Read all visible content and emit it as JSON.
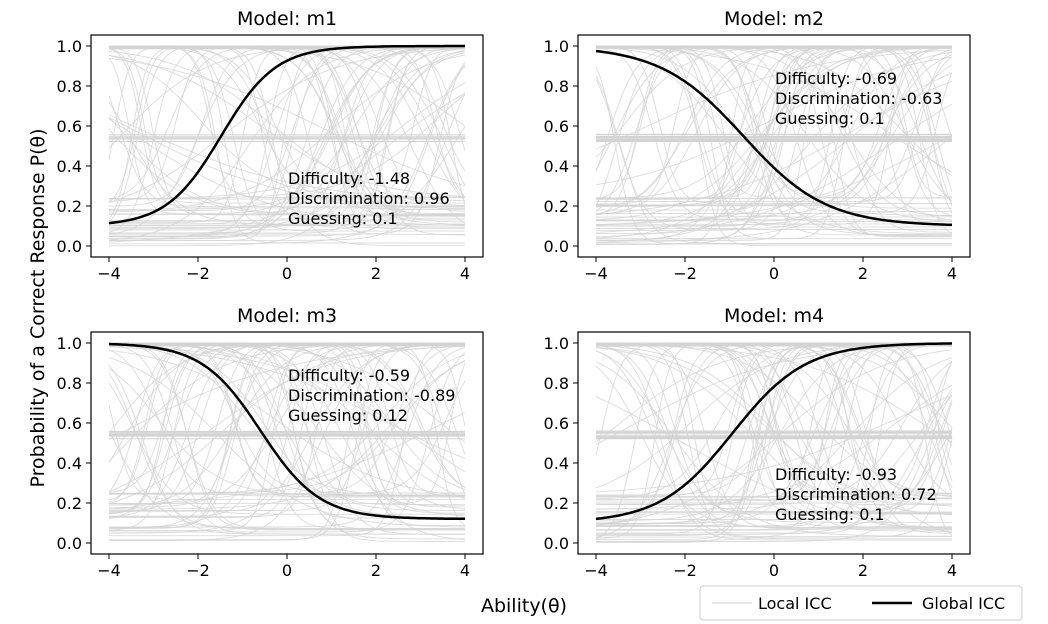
{
  "figure": {
    "ylabel": "Probability of a Correct Response P(θ)",
    "xlabel": "Ability(θ)",
    "legend": {
      "position": "bottom-right",
      "local_label": "Local ICC",
      "global_label": "Global ICC"
    },
    "colors": {
      "local": "#d3d3d3",
      "global": "#000000"
    }
  },
  "chart_data": [
    {
      "type": "line",
      "title": "Model: m1",
      "xlim": [
        -4,
        4
      ],
      "ylim": [
        0,
        1
      ],
      "xticks": [
        -4,
        -2,
        0,
        2,
        4
      ],
      "yticks": [
        0.0,
        0.2,
        0.4,
        0.6,
        0.8,
        1.0
      ],
      "grid": false,
      "global_icc": {
        "difficulty": -1.48,
        "discrimination": 0.96,
        "guessing": 0.1
      },
      "annotation": [
        "Difficulty: -1.48",
        "Discrimination: 0.96",
        "Guessing: 0.1"
      ]
    },
    {
      "type": "line",
      "title": "Model: m2",
      "xlim": [
        -4,
        4
      ],
      "ylim": [
        0,
        1
      ],
      "xticks": [
        -4,
        -2,
        0,
        2,
        4
      ],
      "yticks": [
        0.0,
        0.2,
        0.4,
        0.6,
        0.8,
        1.0
      ],
      "grid": false,
      "global_icc": {
        "difficulty": -0.69,
        "discrimination": -0.63,
        "guessing": 0.1
      },
      "annotation": [
        "Difficulty: -0.69",
        "Discrimination: -0.63",
        "Guessing: 0.1"
      ]
    },
    {
      "type": "line",
      "title": "Model: m3",
      "xlim": [
        -4,
        4
      ],
      "ylim": [
        0,
        1
      ],
      "xticks": [
        -4,
        -2,
        0,
        2,
        4
      ],
      "yticks": [
        0.0,
        0.2,
        0.4,
        0.6,
        0.8,
        1.0
      ],
      "grid": false,
      "global_icc": {
        "difficulty": -0.59,
        "discrimination": -0.89,
        "guessing": 0.12
      },
      "annotation": [
        "Difficulty: -0.59",
        "Discrimination: -0.89",
        "Guessing: 0.12"
      ]
    },
    {
      "type": "line",
      "title": "Model: m4",
      "xlim": [
        -4,
        4
      ],
      "ylim": [
        0,
        1
      ],
      "xticks": [
        -4,
        -2,
        0,
        2,
        4
      ],
      "yticks": [
        0.0,
        0.2,
        0.4,
        0.6,
        0.8,
        1.0
      ],
      "grid": false,
      "global_icc": {
        "difficulty": -0.93,
        "discrimination": 0.72,
        "guessing": 0.1
      },
      "annotation": [
        "Difficulty: -0.93",
        "Discrimination: 0.72",
        "Guessing: 0.1"
      ]
    }
  ]
}
